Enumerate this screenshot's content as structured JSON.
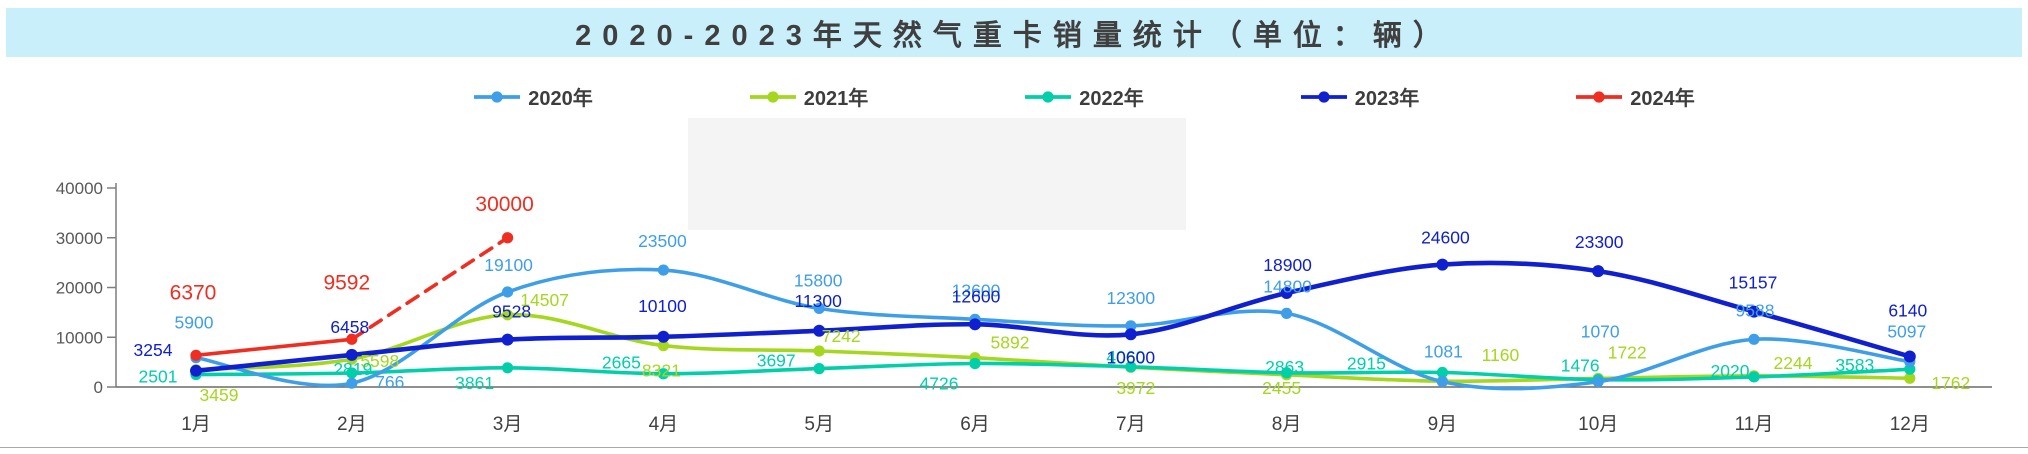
{
  "title": "2020-2023年天然气重卡销量统计（单位：辆）",
  "chart_data": {
    "type": "line",
    "title": "2020-2023年天然气重卡销量统计（单位：辆）",
    "categories": [
      "1月",
      "2月",
      "3月",
      "4月",
      "5月",
      "6月",
      "7月",
      "8月",
      "9月",
      "10月",
      "11月",
      "12月"
    ],
    "ylim": [
      0,
      40000
    ],
    "y_ticks": [
      0,
      10000,
      20000,
      30000,
      40000
    ],
    "grid": false,
    "legend_position": "top",
    "series": [
      {
        "name": "2021年",
        "color": "#a5d71f",
        "dashed": false,
        "values": [
          3459,
          5598,
          14507,
          8321,
          7242,
          5892,
          3972,
          2455,
          1160,
          1722,
          2244,
          1762
        ],
        "label_offsets": [
          [
            23,
            25
          ],
          [
            28,
            2
          ],
          [
            37,
            -15
          ],
          [
            -2,
            25
          ],
          [
            22,
            -15
          ],
          [
            35,
            -15
          ],
          [
            5,
            21
          ],
          [
            -5,
            13
          ],
          [
            58,
            -26
          ],
          [
            29,
            -26
          ],
          [
            39,
            -13
          ],
          [
            41,
            5
          ]
        ]
      },
      {
        "name": "2022年",
        "color": "#00cfaa",
        "dashed": false,
        "values": [
          2501,
          2819,
          3861,
          2665,
          3697,
          4726,
          4060,
          2863,
          2915,
          1476,
          2020,
          3583
        ],
        "label_offsets": [
          [
            -38,
            2
          ],
          [
            1,
            -4
          ],
          [
            -33,
            15
          ],
          [
            -42,
            -11
          ],
          [
            -43,
            -8
          ],
          [
            -36,
            20
          ],
          [
            -5,
            -10
          ],
          [
            -2,
            -6
          ],
          [
            -76,
            -9
          ],
          [
            -18,
            -14
          ],
          [
            -24,
            -6
          ],
          [
            -55,
            -4
          ]
        ]
      },
      {
        "name": "2020年",
        "color": "#3e9fe8",
        "dashed": false,
        "values": [
          5900,
          766,
          19100,
          23500,
          15800,
          13600,
          12300,
          14800,
          1081,
          1070,
          9588,
          5097
        ],
        "label_offsets": [
          [
            -2,
            -35
          ],
          [
            38,
            -1
          ],
          [
            1,
            -27
          ],
          [
            -1,
            -29
          ],
          [
            -1,
            -28
          ],
          [
            1,
            -29
          ],
          [
            0,
            -28
          ],
          [
            1,
            -27
          ],
          [
            1,
            -30
          ],
          [
            2,
            -50
          ],
          [
            1,
            -29
          ],
          [
            -3,
            -30
          ]
        ]
      },
      {
        "name": "2023年",
        "color": "#1020ce",
        "dashed": false,
        "values": [
          3254,
          6458,
          9528,
          10100,
          11300,
          12600,
          10600,
          18900,
          24600,
          23300,
          15157,
          6140
        ],
        "label_offsets": [
          [
            -43,
            -21
          ],
          [
            -2,
            -28
          ],
          [
            4,
            -28
          ],
          [
            -1,
            -31
          ],
          [
            -1,
            -30
          ],
          [
            1,
            -28
          ],
          [
            0,
            23
          ],
          [
            1,
            -28
          ],
          [
            3,
            -27
          ],
          [
            1,
            -29
          ],
          [
            -1,
            -29
          ],
          [
            -2,
            -46
          ]
        ]
      },
      {
        "name": "2024年",
        "color": "#f02d21",
        "dashed": true,
        "dash_from": 1,
        "values": [
          6370,
          9592,
          30000
        ],
        "label_offsets": [
          [
            -3,
            -62
          ],
          [
            -5,
            -56
          ],
          [
            -3,
            -33
          ]
        ]
      }
    ],
    "legend_order": [
      "2020年",
      "2021年",
      "2022年",
      "2023年",
      "2024年"
    ]
  }
}
